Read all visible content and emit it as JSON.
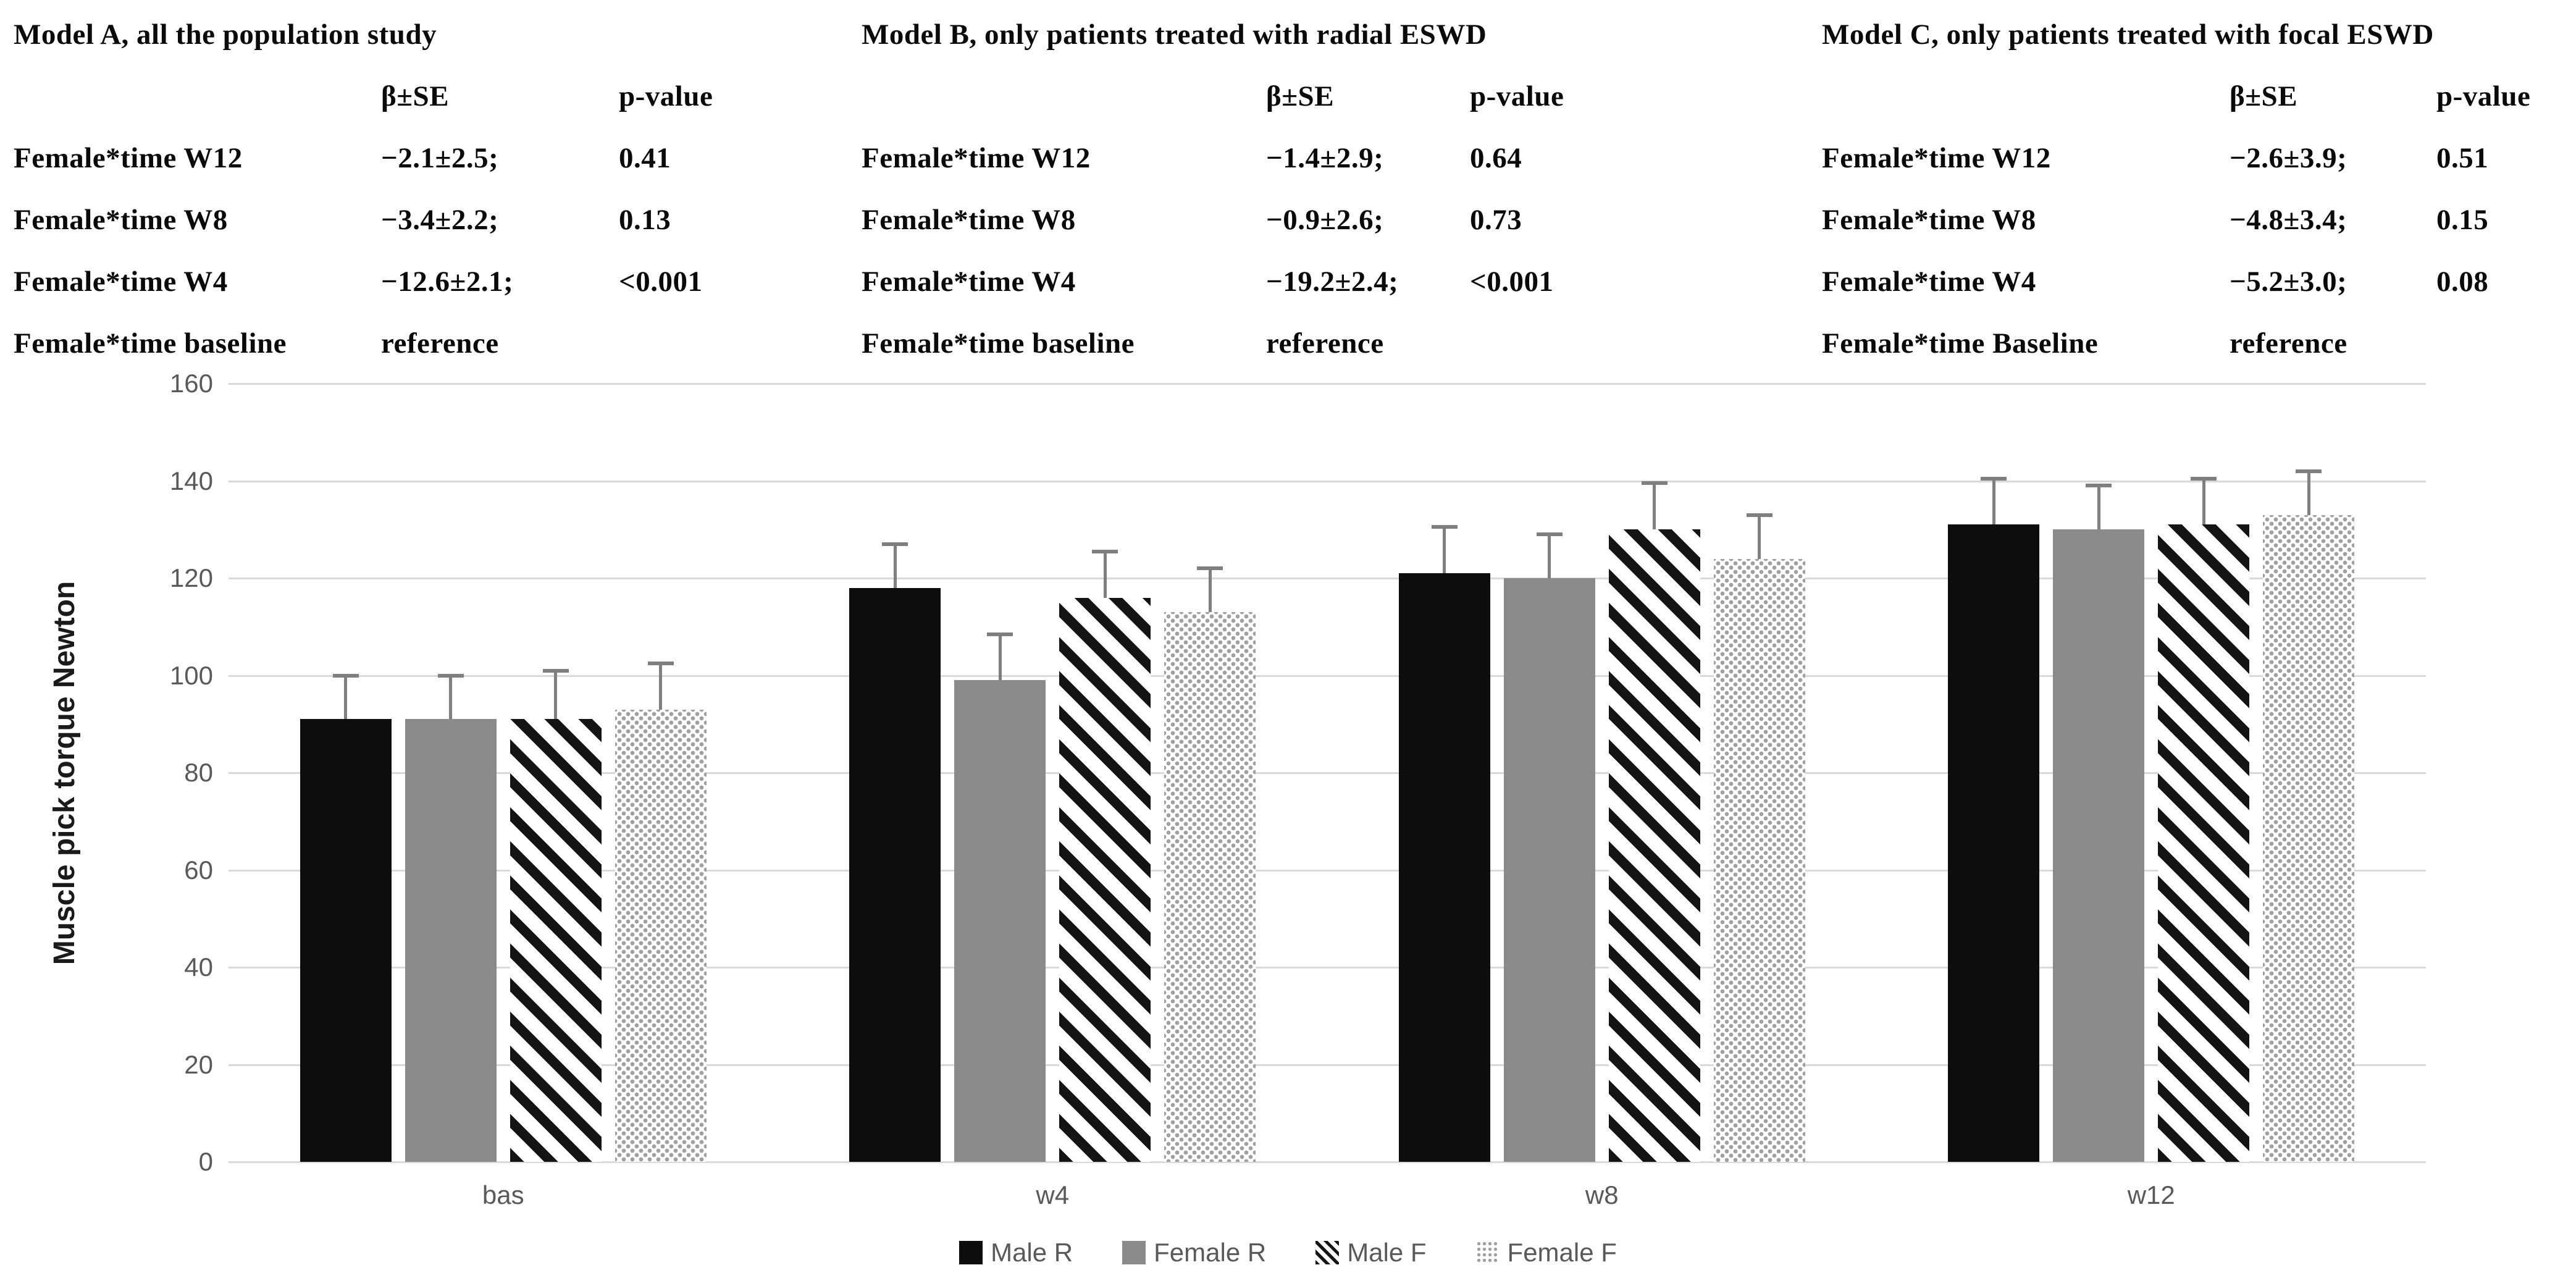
{
  "models": [
    {
      "title": "Model A, all the population study",
      "col_beta": "β±SE",
      "col_p": "p-value",
      "rows": [
        {
          "label": "Female*time W12",
          "beta": "−2.1±2.5;",
          "p": "0.41"
        },
        {
          "label": "Female*time W8",
          "beta": "−3.4±2.2;",
          "p": "0.13"
        },
        {
          "label": "Female*time W4",
          "beta": "−12.6±2.1;",
          "p": "<0.001"
        },
        {
          "label": "Female*time baseline",
          "beta": "reference",
          "p": ""
        }
      ]
    },
    {
      "title": "Model B, only patients treated with radial ESWD",
      "col_beta": "β±SE",
      "col_p": "p-value",
      "rows": [
        {
          "label": "Female*time W12",
          "beta": "−1.4±2.9;",
          "p": "0.64"
        },
        {
          "label": "Female*time W8",
          "beta": "−0.9±2.6;",
          "p": "0.73"
        },
        {
          "label": "Female*time W4",
          "beta": "−19.2±2.4;",
          "p": "<0.001"
        },
        {
          "label": "Female*time baseline",
          "beta": "reference",
          "p": ""
        }
      ]
    },
    {
      "title": "Model C, only patients treated with focal ESWD",
      "col_beta": "β±SE",
      "col_p": "p-value",
      "rows": [
        {
          "label": "Female*time W12",
          "beta": "−2.6±3.9;",
          "p": "0.51"
        },
        {
          "label": "Female*time W8",
          "beta": "−4.8±3.4;",
          "p": "0.15"
        },
        {
          "label": "Female*time W4",
          "beta": "−5.2±3.0;",
          "p": "0.08"
        },
        {
          "label": "Female*time Baseline",
          "beta": "reference",
          "p": ""
        }
      ]
    }
  ],
  "chart_data": {
    "type": "bar",
    "title": "",
    "ylabel": "Muscle pick torque Newton",
    "xlabel": "",
    "categories": [
      "bas",
      "w4",
      "w8",
      "w12"
    ],
    "series": [
      {
        "name": "Male R",
        "pattern": "solid-black",
        "values": [
          91,
          118,
          121,
          131
        ],
        "errors_plus": [
          9,
          9,
          9.5,
          9.5
        ]
      },
      {
        "name": "Female R",
        "pattern": "solid-gray",
        "values": [
          91,
          99,
          120,
          130
        ],
        "errors_plus": [
          9,
          9.5,
          9,
          9
        ]
      },
      {
        "name": "Male F",
        "pattern": "diagonal-stripes",
        "values": [
          91,
          116,
          130,
          131
        ],
        "errors_plus": [
          10,
          9.5,
          9.5,
          9.5
        ]
      },
      {
        "name": "Female F",
        "pattern": "dots",
        "values": [
          93,
          113,
          124,
          133
        ],
        "errors_plus": [
          9.5,
          9,
          9,
          9
        ]
      }
    ],
    "ylim": [
      0,
      160
    ],
    "ytick_step": 20,
    "grid": true,
    "legend_position": "bottom"
  },
  "colors": {
    "gridline": "#d9d9d9",
    "tick_label": "#595959",
    "axis_title": "#1a1a1a",
    "bar_black": "#0d0d0d",
    "bar_gray": "#8a8a8a",
    "error_bar": "#7f7f7f",
    "background": "#ffffff"
  }
}
